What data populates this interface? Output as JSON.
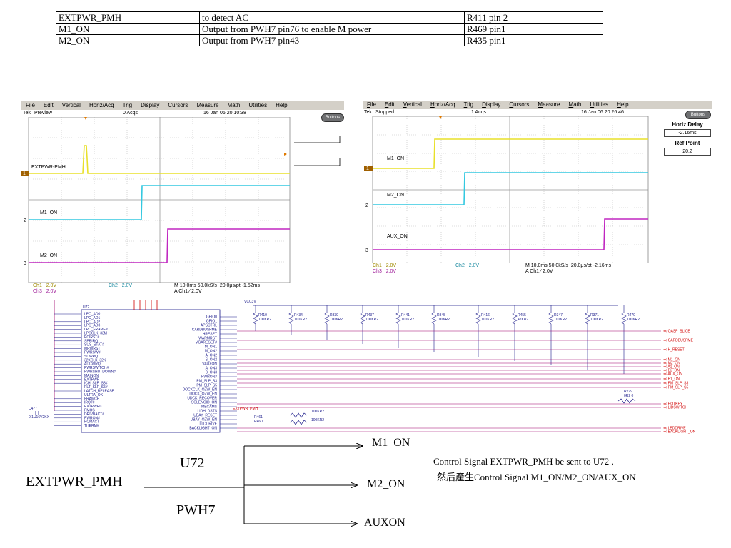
{
  "table": {
    "rows": [
      [
        "EXTPWR_PMH",
        "to detect AC",
        "R411 pin 2"
      ],
      [
        "M1_ON",
        "Output from PWH7   pin76   to enable M power",
        "R469 pin1"
      ],
      [
        "M2_ON",
        "Output from PWH7   pin43",
        "R435 pin1"
      ]
    ]
  },
  "scope_left": {
    "menu": [
      "File",
      "Edit",
      "Vertical",
      "Horiz/Acq",
      "Trig",
      "Display",
      "Cursors",
      "Measure",
      "Math",
      "Utilities",
      "Help"
    ],
    "status_left": "Tek",
    "status_mode": "Preview",
    "acqs": "0 Acqs",
    "timestamp": "16 Jan 06 20:10:38",
    "buttons_label": "Buttons",
    "trace_labels": [
      "EXTPWR-PMH",
      "M1_ON",
      "M2_ON"
    ],
    "channel_markers": [
      "1",
      "2",
      "3"
    ],
    "footer": {
      "ch1": "Ch1",
      "ch1_v": "2.0V",
      "ch3": "Ch3",
      "ch3_v": "2.0V",
      "ch2": "Ch2",
      "ch2_v": "2.0V",
      "time": "M 10.0ms 50.0kS/s",
      "rate": "20.0μs/pt  -1.52ms",
      "trig": "A  Ch1  ∕  2.0V"
    },
    "colors": {
      "ch1": "#e8e02a",
      "ch2": "#33c8e0",
      "ch3": "#c026c0"
    }
  },
  "scope_right": {
    "menu": [
      "File",
      "Edit",
      "Vertical",
      "Horiz/Acq",
      "Trig",
      "Display",
      "Cursors",
      "Measure",
      "Math",
      "Utilities",
      "Help"
    ],
    "status_left": "Tek",
    "status_mode": "Stopped",
    "acqs": "1 Acqs",
    "timestamp": "16 Jan 06 20:26:46",
    "buttons_label": "Buttons",
    "horiz_delay_title": "Horiz Delay",
    "horiz_delay_value": "-2.16ms",
    "ref_point_title": "Ref Point",
    "ref_point_value": "20.2",
    "trace_labels": [
      "M1_ON",
      "M2_ON",
      "AUX_ON"
    ],
    "channel_markers": [
      "1",
      "2",
      "3"
    ],
    "footer": {
      "ch1": "Ch1",
      "ch1_v": "2.0V",
      "ch3": "Ch3",
      "ch3_v": "2.0V",
      "ch2": "Ch2",
      "ch2_v": "2.0V",
      "time": "M 10.0ms 50.0kS/s",
      "rate": "20.0μs/pt  -2.16ms",
      "trig": "A  Ch1  ∕  2.0V"
    }
  },
  "schematic": {
    "chip_ref": "U72",
    "vcc_label": "VCC3V",
    "resistors": [
      {
        "ref": "R410",
        "val": "100KR2"
      },
      {
        "ref": "R434",
        "val": "100KR2"
      },
      {
        "ref": "R339",
        "val": "100KR2"
      },
      {
        "ref": "R437",
        "val": "100KR2"
      },
      {
        "ref": "R441",
        "val": "100KR2"
      },
      {
        "ref": "R345",
        "val": "100KR2"
      },
      {
        "ref": "R416",
        "val": "100KR2"
      },
      {
        "ref": "R455",
        "val": "47KR2"
      },
      {
        "ref": "R347",
        "val": "100KR2"
      },
      {
        "ref": "R371",
        "val": "100KR2"
      },
      {
        "ref": "R470",
        "val": "100KR2"
      }
    ],
    "left_pins": [
      "LPC_AD0",
      "LPC_AD1",
      "LPC_AD2",
      "LPC_AD3",
      "LPC_FRAME#",
      "LPCCLK_33M",
      "PCIRST#",
      "SERIRQ",
      "SUS_STAT#",
      "MRWRST",
      "PWRSW#",
      "SCWRQ",
      "32KCLK_32K",
      "ADCWRQ",
      "PWRSWITCH#",
      "PWRSHUTDOWN#",
      "MAINON",
      "EXTPWR",
      "ICH_SLP_S3#",
      "PLT_SLP_S5#",
      "LATCH_RELEASE",
      "ULTRA_OK",
      "FRAMCE",
      "IRQ7#",
      "EXTPWRC",
      "PMOS",
      "DRIVBACT#",
      "PWRON#",
      "PCMACT",
      "THERM#"
    ],
    "right_pins": [
      "GPIO0",
      "GPIO1",
      "APSCTRL",
      "CARDBUSPME",
      "HRESET",
      "WARMRST",
      "VGARESET#",
      "M_ON1",
      "M_ON2",
      "A_ON2",
      "S_ON2",
      "VAUXON",
      "A_ON3",
      "B_ON3",
      "PWRON#",
      "PM_SLP_S3",
      "PM_SLP_S5",
      "DOCKCLK_OZW_EN",
      "DOCK_OZW_EN",
      "UDCK_RECOVER",
      "SOLENOID_ON",
      "MECAMS",
      "LIDHLDSTS",
      "UBAY_RESET",
      "UBAY_OZW_EN",
      "LLDDRIVE",
      "BACKLIGHT_ON"
    ],
    "out_labels": [
      "OASP_SLICE",
      "CARDBUSPME",
      "H_RESET",
      "M1_ON",
      "M2_ON",
      "A1_ON",
      "B2_ON",
      "AUX_ON",
      "B1_ON",
      "PM_SLP_S3",
      "PM_SLP_S5",
      "HOTKEY",
      "LIDSWITCH",
      "LEDDRIVE",
      "BACKLIGHT_ON"
    ],
    "r279": "R279",
    "r279_val": "0R2 0",
    "extpwr_label": "EXTPWR_PMH",
    "r460": "R460",
    "r460_val": "100KR2",
    "r461": "R461",
    "r461_val": "100KR2",
    "c477": "C477",
    "c477_val": "0.1U16V2KX"
  },
  "diagram": {
    "input": "EXTPWR_PMH",
    "chip_top": "U72",
    "chip_bottom": "PWH7",
    "outputs": [
      "M1_ON",
      "M2_ON",
      "AUXON"
    ],
    "note_line1": "Control Signal  EXTPWR_PMH   be  sent to U72 ,",
    "note_line2": "然后產生Control  Signal  M1_ON/M2_ON/AUX_ON"
  }
}
